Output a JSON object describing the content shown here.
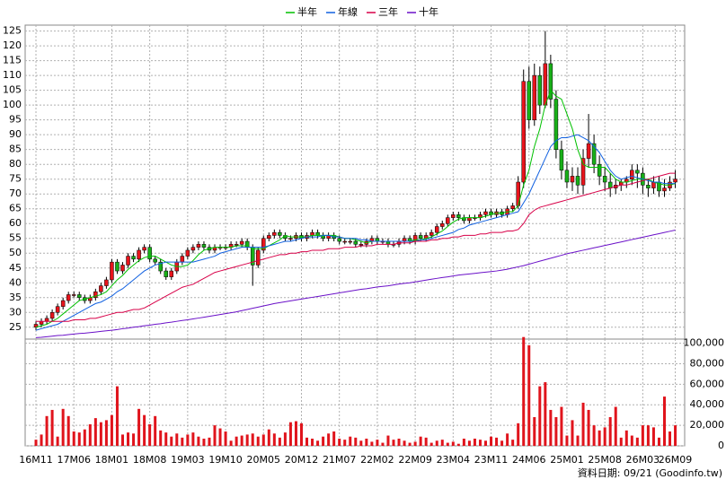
{
  "chart_data": [
    {
      "type": "candlestick",
      "categories": [
        "16M11",
        null,
        null,
        null,
        null,
        null,
        null,
        "17M06",
        null,
        null,
        null,
        null,
        null,
        null,
        "18M01",
        null,
        null,
        null,
        null,
        null,
        null,
        "18M08",
        null,
        null,
        null,
        null,
        null,
        null,
        "19M03",
        null,
        null,
        null,
        null,
        null,
        null,
        "19M10",
        null,
        null,
        null,
        null,
        null,
        null,
        "20M05",
        null,
        null,
        null,
        null,
        null,
        null,
        "20M12",
        null,
        null,
        null,
        null,
        null,
        null,
        "21M07",
        null,
        null,
        null,
        null,
        null,
        null,
        "22M02",
        null,
        null,
        null,
        null,
        null,
        null,
        "22M09",
        null,
        null,
        null,
        null,
        null,
        null,
        "23M04",
        null,
        null,
        null,
        null,
        null,
        null,
        "23M11",
        null,
        null,
        null,
        null,
        null,
        null,
        "24M06",
        null,
        null,
        null,
        null,
        null,
        null,
        "25M01",
        null,
        null,
        null,
        null,
        null,
        null,
        "25M08",
        null,
        null,
        null,
        null,
        null,
        null,
        "26M03",
        null,
        null,
        null,
        null,
        null,
        "26M09"
      ],
      "open": [
        25,
        26,
        27,
        28,
        30,
        32,
        34,
        36,
        36,
        35,
        34,
        35,
        37,
        39,
        41,
        47,
        44,
        46,
        49,
        48,
        51,
        52,
        48,
        47,
        44,
        42,
        44,
        47,
        49,
        51,
        52,
        53,
        52,
        51,
        52,
        52,
        52,
        53,
        53,
        54,
        52,
        46,
        51,
        55,
        56,
        57,
        56,
        55,
        55,
        56,
        55,
        56,
        57,
        56,
        55,
        56,
        55,
        54,
        54,
        54,
        53,
        53,
        54,
        55,
        54,
        54,
        53,
        53,
        54,
        55,
        54,
        56,
        55,
        56,
        57,
        59,
        60,
        62,
        63,
        62,
        61,
        62,
        62,
        63,
        64,
        63,
        64,
        63,
        65,
        66,
        74,
        108,
        95,
        110,
        100,
        114,
        102,
        85,
        78,
        74,
        76,
        73,
        82,
        87,
        80,
        76,
        74,
        72,
        73,
        74,
        75,
        78,
        77,
        73,
        72,
        74,
        71,
        72,
        74
      ],
      "high": [
        27,
        28,
        29,
        31,
        33,
        35,
        37,
        37,
        37,
        36,
        36,
        38,
        40,
        42,
        48,
        48,
        47,
        50,
        50,
        52,
        53,
        53,
        49,
        48,
        45,
        45,
        48,
        50,
        52,
        53,
        54,
        54,
        53,
        53,
        53,
        53,
        54,
        54,
        55,
        55,
        53,
        52,
        56,
        57,
        58,
        58,
        57,
        56,
        57,
        57,
        57,
        58,
        58,
        57,
        57,
        57,
        56,
        55,
        55,
        55,
        54,
        55,
        56,
        56,
        55,
        55,
        54,
        55,
        56,
        56,
        57,
        57,
        57,
        58,
        60,
        61,
        63,
        64,
        64,
        63,
        63,
        63,
        64,
        65,
        65,
        65,
        65,
        66,
        67,
        76,
        112,
        113,
        114,
        113,
        125,
        117,
        105,
        88,
        81,
        79,
        79,
        85,
        97,
        90,
        83,
        79,
        77,
        75,
        75,
        76,
        80,
        80,
        79,
        75,
        76,
        76,
        75,
        76,
        78
      ],
      "low": [
        24,
        25,
        26,
        27,
        29,
        31,
        33,
        35,
        34,
        33,
        33,
        34,
        36,
        38,
        40,
        43,
        43,
        45,
        47,
        47,
        50,
        47,
        46,
        43,
        41,
        41,
        43,
        46,
        48,
        50,
        51,
        51,
        50,
        50,
        51,
        51,
        51,
        52,
        52,
        51,
        39,
        45,
        50,
        54,
        55,
        55,
        54,
        54,
        54,
        54,
        54,
        55,
        55,
        54,
        54,
        54,
        53,
        53,
        53,
        52,
        52,
        52,
        53,
        53,
        53,
        52,
        52,
        52,
        53,
        53,
        53,
        54,
        54,
        55,
        56,
        58,
        59,
        61,
        61,
        60,
        60,
        61,
        61,
        62,
        62,
        62,
        62,
        62,
        64,
        65,
        72,
        92,
        93,
        97,
        99,
        99,
        82,
        75,
        72,
        71,
        70,
        70,
        79,
        77,
        73,
        71,
        69,
        70,
        71,
        72,
        73,
        72,
        70,
        69,
        70,
        69,
        69,
        71,
        72
      ],
      "close": [
        26,
        27,
        28,
        30,
        32,
        34,
        36,
        36,
        35,
        34,
        35,
        37,
        39,
        41,
        47,
        44,
        46,
        49,
        48,
        51,
        52,
        48,
        47,
        44,
        42,
        44,
        47,
        49,
        51,
        52,
        53,
        52,
        51,
        52,
        52,
        52,
        53,
        53,
        54,
        52,
        46,
        51,
        55,
        56,
        57,
        56,
        55,
        55,
        56,
        55,
        56,
        57,
        56,
        55,
        56,
        55,
        54,
        54,
        54,
        53,
        53,
        54,
        55,
        54,
        54,
        53,
        53,
        54,
        55,
        54,
        56,
        55,
        56,
        57,
        59,
        60,
        62,
        63,
        62,
        61,
        62,
        62,
        63,
        64,
        63,
        64,
        63,
        65,
        66,
        74,
        108,
        95,
        110,
        100,
        114,
        102,
        85,
        78,
        74,
        76,
        73,
        82,
        87,
        80,
        76,
        74,
        72,
        73,
        74,
        75,
        78,
        77,
        73,
        72,
        74,
        71,
        72,
        74,
        75
      ],
      "up_color": "#e8141c",
      "down_color": "#18b018",
      "wick_color": "#000000",
      "series": [
        {
          "name": "半年",
          "color": "#00c000",
          "values": [
            25,
            25.5,
            26,
            27,
            28,
            29.5,
            31,
            32.5,
            34,
            34.5,
            35,
            35.5,
            36,
            37,
            39,
            41,
            42.5,
            44.5,
            46,
            47.5,
            48.5,
            49,
            49,
            48,
            47,
            46,
            45.5,
            45.5,
            46,
            47.5,
            49.5,
            51,
            51.5,
            52,
            52,
            52,
            52,
            52.5,
            52.5,
            52.5,
            51.5,
            51.5,
            51.5,
            52.5,
            53.5,
            54.5,
            56,
            55.5,
            55.5,
            55.5,
            55.5,
            56,
            56,
            56,
            56,
            56,
            55.5,
            55,
            55,
            54.5,
            54,
            53.5,
            54,
            54,
            54,
            54,
            54,
            54,
            54,
            54,
            54.5,
            54.5,
            55,
            55.5,
            56.5,
            57.5,
            59,
            60.5,
            61.5,
            62,
            62,
            62,
            62,
            62.5,
            63,
            63.5,
            63.5,
            64,
            64,
            66,
            73,
            78,
            86,
            92,
            100,
            105,
            103,
            102,
            97,
            92,
            85,
            80,
            79,
            79,
            79,
            79,
            77,
            75,
            74,
            74,
            74.5,
            75,
            75,
            75,
            74,
            73.5,
            73,
            73,
            73.5
          ]
        },
        {
          "name": "年線",
          "color": "#1060e0",
          "values": [
            24,
            24.5,
            25,
            25.5,
            26,
            27,
            28,
            29,
            30,
            31,
            32,
            33,
            33.5,
            34.5,
            35.5,
            37,
            38,
            39.5,
            41,
            42.5,
            44,
            45,
            46,
            46.5,
            47,
            47,
            47,
            47,
            47,
            47,
            47.5,
            48,
            48.5,
            49,
            50,
            50.5,
            51,
            51.5,
            52,
            52,
            52,
            52,
            52,
            52.5,
            53,
            53.5,
            54,
            54,
            54.5,
            55,
            55.5,
            55.5,
            55.5,
            56,
            56,
            55.5,
            55.5,
            55,
            55,
            55,
            54.5,
            54.5,
            54,
            54,
            54,
            54,
            54,
            54,
            54,
            54,
            54,
            54.5,
            54.5,
            55,
            55.5,
            56,
            56.5,
            57,
            58,
            58.5,
            59.5,
            60,
            60.5,
            61,
            61.5,
            62,
            62.5,
            63,
            63.5,
            64,
            67,
            70,
            74,
            78,
            82,
            86,
            88,
            89,
            89,
            89.5,
            90,
            89,
            88,
            86,
            84,
            81,
            78,
            76,
            75,
            75.5,
            76,
            75.5,
            75,
            74.5,
            74,
            74,
            73.5,
            73.5,
            73.5
          ]
        },
        {
          "name": "三年",
          "color": "#d80048",
          "values": [
            27,
            27,
            27,
            27,
            27,
            27,
            27,
            27.5,
            27.5,
            27.5,
            28,
            28,
            28.5,
            29,
            29.5,
            30,
            30,
            30.5,
            31,
            31,
            31.5,
            32.5,
            33.5,
            34.5,
            35.5,
            36.5,
            37.5,
            38.5,
            39,
            39.5,
            40.5,
            41.5,
            42.5,
            43.5,
            44,
            44.5,
            45,
            45.5,
            46,
            46.5,
            47,
            47.5,
            48,
            48.5,
            49,
            49.5,
            49.5,
            50,
            50,
            50.5,
            50.5,
            51,
            51,
            51,
            51.5,
            51.5,
            51.5,
            52,
            52,
            52,
            52.5,
            52.5,
            52.5,
            53,
            53,
            53,
            53,
            53.5,
            53.5,
            53.5,
            54,
            54,
            54,
            54.5,
            54.5,
            55,
            55,
            55.5,
            55.5,
            56,
            56,
            56,
            56.5,
            56.5,
            57,
            57,
            57,
            57.5,
            57.5,
            58,
            60,
            63,
            64.5,
            65.5,
            66,
            66.5,
            67,
            67.5,
            68,
            68.5,
            69,
            69.5,
            70,
            70.5,
            71,
            71.5,
            72,
            72.5,
            73,
            73,
            73.5,
            74,
            74.5,
            75,
            75.5,
            76,
            76.5,
            77,
            77
          ]
        },
        {
          "name": "十年",
          "color": "#6a10c8",
          "values": [
            21.5,
            21.6,
            21.8,
            22,
            22.2,
            22.3,
            22.5,
            22.7,
            22.9,
            23,
            23.2,
            23.4,
            23.6,
            23.8,
            24,
            24.2,
            24.5,
            24.7,
            25,
            25.2,
            25.5,
            25.7,
            26,
            26.2,
            26.5,
            26.7,
            27,
            27.3,
            27.5,
            27.8,
            28.1,
            28.4,
            28.7,
            29,
            29.3,
            29.6,
            29.9,
            30.2,
            30.6,
            31,
            31.4,
            31.8,
            32.2,
            32.6,
            33,
            33.3,
            33.6,
            33.9,
            34.2,
            34.5,
            34.8,
            35.1,
            35.4,
            35.7,
            36,
            36.3,
            36.6,
            36.9,
            37.2,
            37.5,
            37.8,
            38,
            38.3,
            38.6,
            38.8,
            39,
            39.3,
            39.6,
            39.8,
            40,
            40.3,
            40.6,
            40.9,
            41.2,
            41.5,
            41.8,
            42,
            42.3,
            42.6,
            42.8,
            43,
            43.2,
            43.4,
            43.6,
            43.8,
            44,
            44.3,
            44.6,
            45,
            45.4,
            45.8,
            46.3,
            46.8,
            47.3,
            47.8,
            48.3,
            48.8,
            49.3,
            49.8,
            50.2,
            50.6,
            51,
            51.4,
            51.8,
            52.2,
            52.6,
            53,
            53.4,
            53.8,
            54.2,
            54.6,
            55,
            55.4,
            55.8,
            56.2,
            56.6,
            57,
            57.4,
            57.8
          ]
        }
      ],
      "ylim": [
        21,
        127
      ],
      "yticks": [
        25,
        30,
        35,
        40,
        45,
        50,
        55,
        60,
        65,
        70,
        75,
        80,
        85,
        90,
        95,
        100,
        105,
        110,
        115,
        120,
        125
      ],
      "grid": true,
      "legend": "top"
    },
    {
      "type": "bar",
      "values": [
        6000,
        11000,
        29000,
        35000,
        9000,
        36000,
        29000,
        14000,
        13000,
        16000,
        21000,
        27000,
        23000,
        25000,
        30000,
        58000,
        11000,
        13000,
        12000,
        36000,
        30000,
        21000,
        29000,
        15000,
        13000,
        9000,
        12000,
        8000,
        11000,
        13000,
        9000,
        7000,
        8000,
        20000,
        17000,
        14000,
        5000,
        9000,
        10000,
        11000,
        12000,
        9000,
        11000,
        16000,
        12000,
        8000,
        13000,
        23000,
        24000,
        22000,
        8000,
        7000,
        5000,
        9000,
        12000,
        14000,
        7000,
        6000,
        9000,
        8000,
        5000,
        7000,
        4000,
        6000,
        3000,
        10000,
        6000,
        7000,
        5000,
        3000,
        4000,
        9000,
        8000,
        3000,
        5000,
        6000,
        3000,
        4000,
        2000,
        7000,
        5000,
        7000,
        6000,
        5000,
        9000,
        8000,
        5000,
        12000,
        6000,
        22000,
        106000,
        98000,
        28000,
        58000,
        62000,
        35000,
        28000,
        38000,
        10000,
        25000,
        10000,
        42000,
        35000,
        20000,
        15000,
        18000,
        28000,
        38000,
        8000,
        15000,
        10000,
        8000,
        20000,
        20000,
        18000,
        8000,
        48000,
        14000,
        20000
      ],
      "color": "#e0141c",
      "ylim": [
        0,
        104000
      ],
      "yticks": [
        0,
        {
          "value": 20000,
          "label": "20,000"
        },
        {
          "value": 40000,
          "label": "40,000"
        },
        {
          "value": 60000,
          "label": "60,000"
        },
        {
          "value": 80000,
          "label": "80,000"
        },
        {
          "value": 100000,
          "label": "100,000"
        }
      ],
      "grid": true
    }
  ],
  "source": "資料日期: 09/21 (Goodinfo.tw)"
}
